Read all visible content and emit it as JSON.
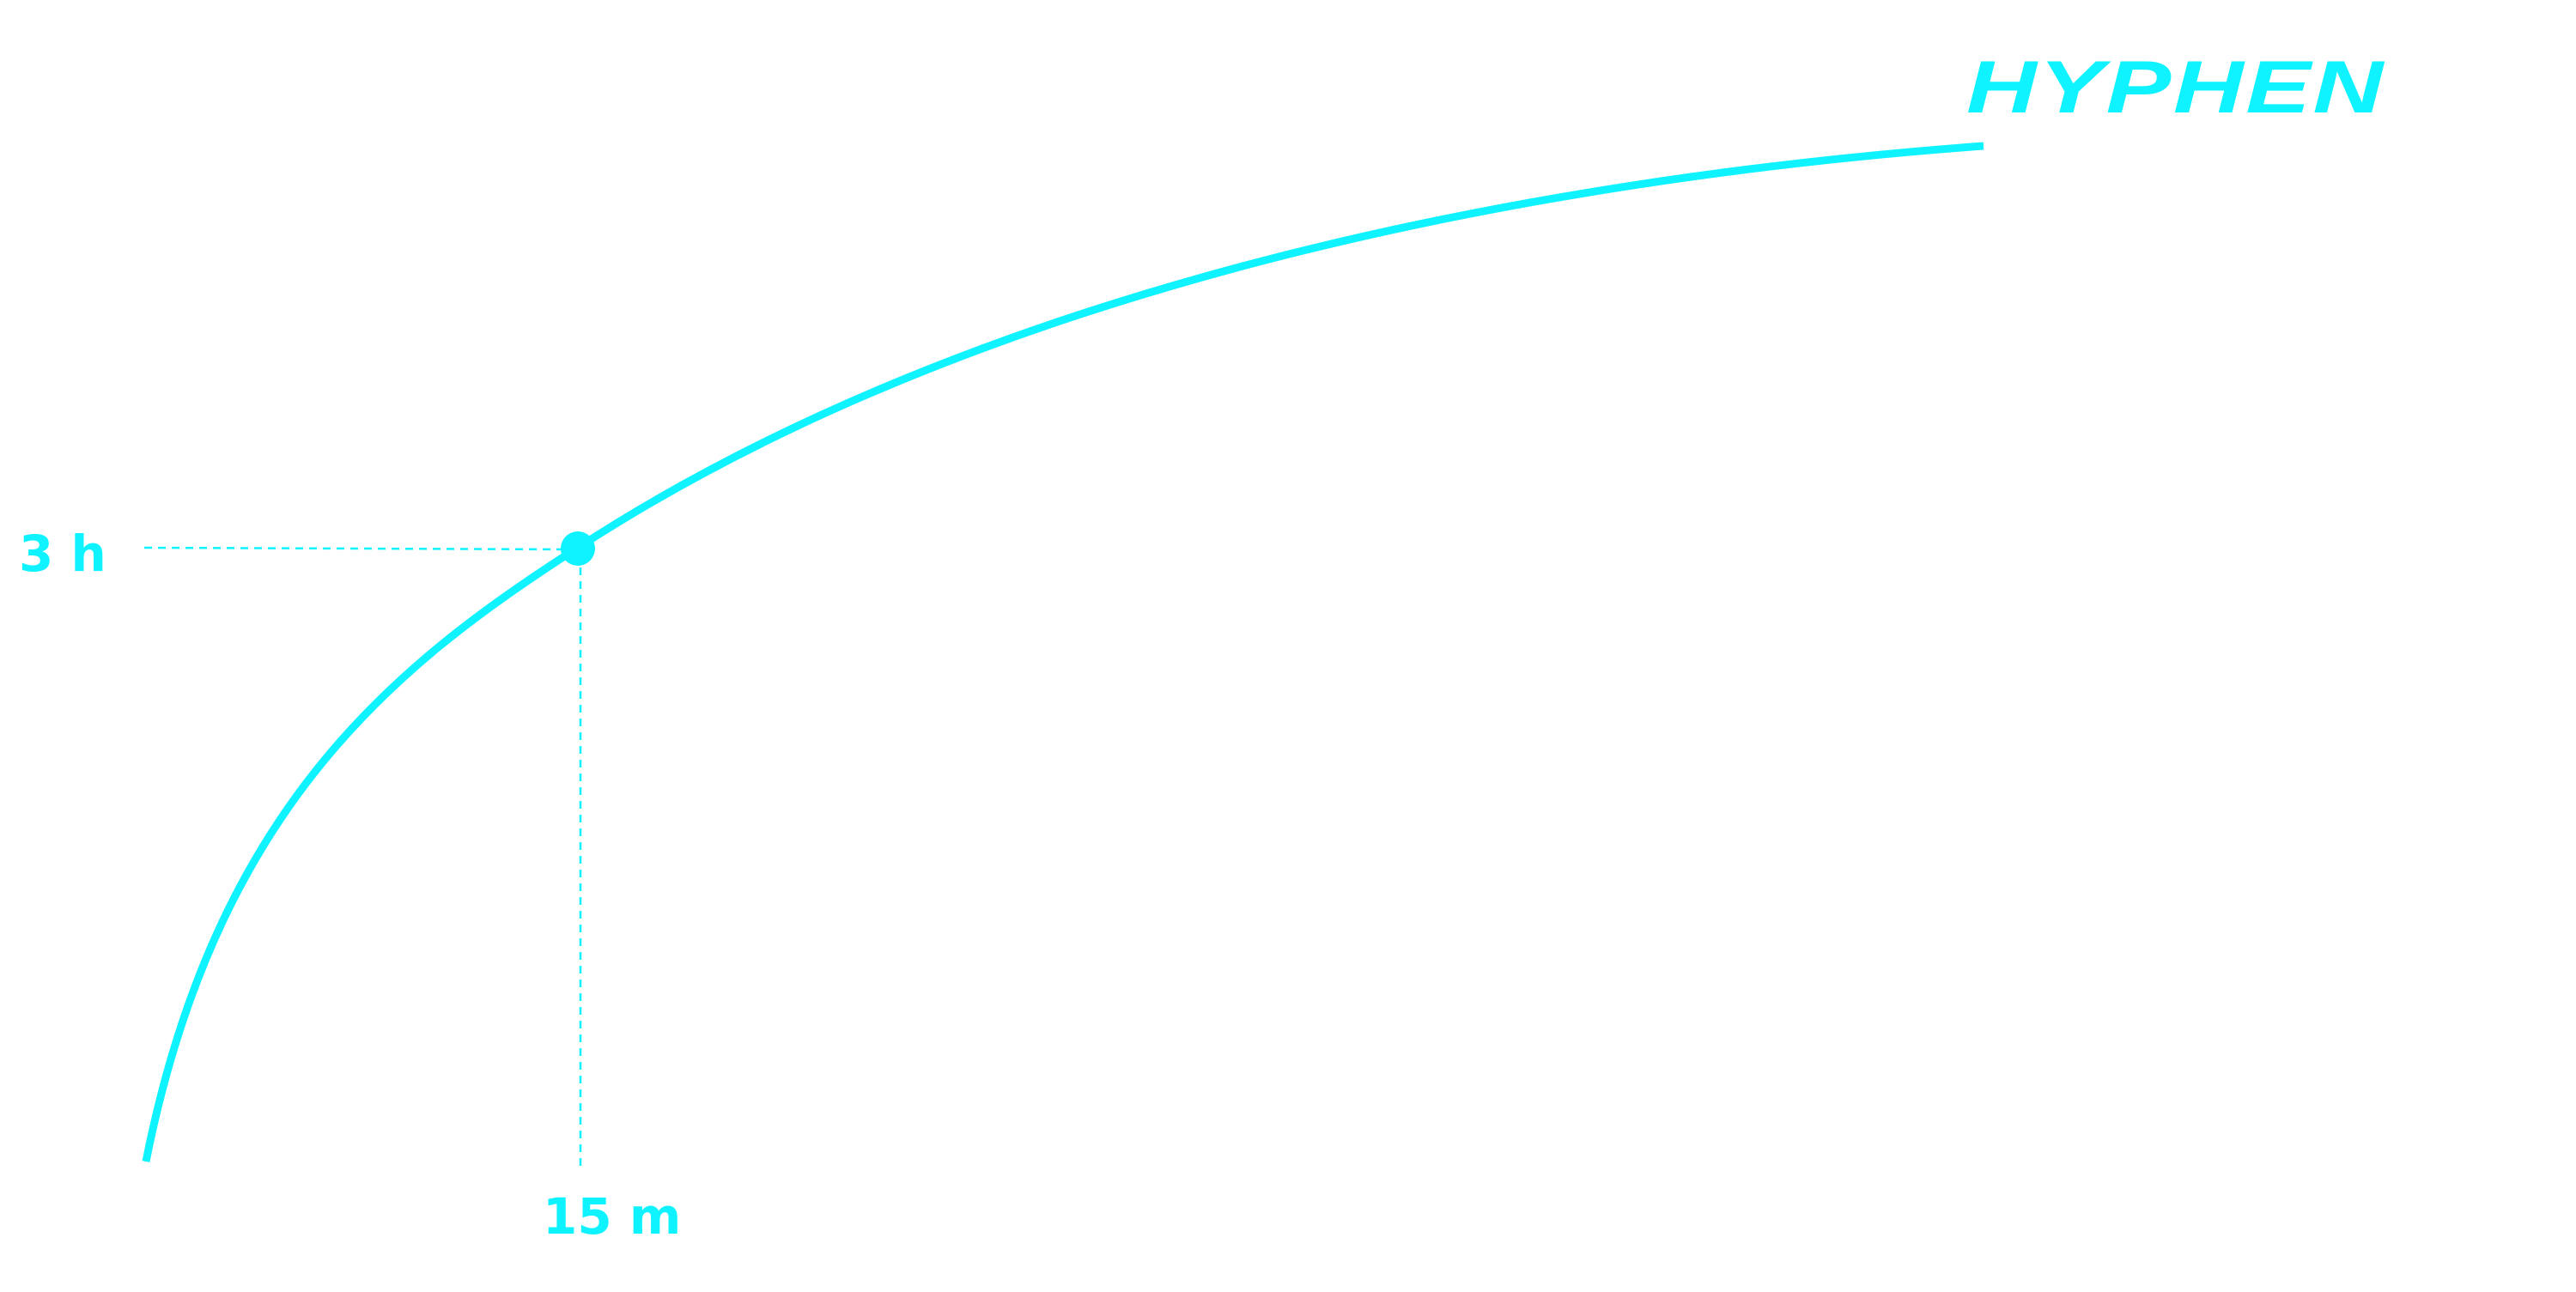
{
  "brand": "HYPHEN",
  "marker": {
    "y_label": "3 h",
    "x_label": "15 m"
  }
}
